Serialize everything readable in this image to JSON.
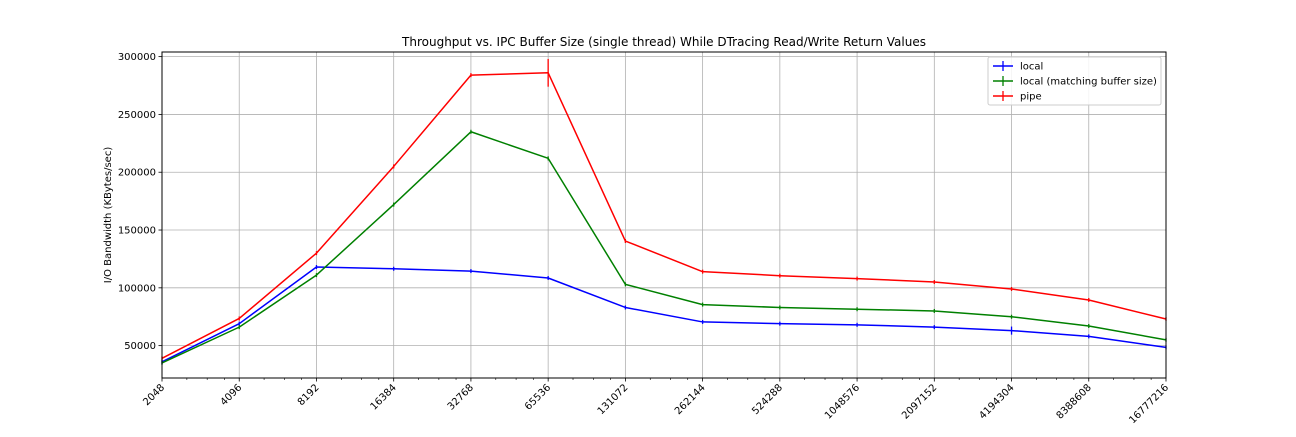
{
  "chart_data": {
    "type": "line",
    "title": "Throughput vs. IPC Buffer Size (single thread) While DTracing Read/Write Return Values",
    "xlabel": "",
    "ylabel": "I/O Bandwidth (KBytes/sec)",
    "x_scale": "log2",
    "xlim": [
      2048,
      16777216
    ],
    "ylim": [
      22000,
      304000
    ],
    "grid": true,
    "legend_position": "top-right",
    "x_ticks": [
      "2048",
      "4096",
      "8192",
      "16384",
      "32768",
      "65536",
      "131072",
      "262144",
      "524288",
      "1048576",
      "2097152",
      "4194304",
      "8388608",
      "16777216"
    ],
    "y_ticks": [
      "50000",
      "100000",
      "150000",
      "200000",
      "250000",
      "300000"
    ],
    "x": [
      2048,
      4096,
      8192,
      16384,
      32768,
      65536,
      131072,
      262144,
      524288,
      1048576,
      2097152,
      4194304,
      8388608,
      16777216
    ],
    "series": [
      {
        "name": "local",
        "color": "#0000ff",
        "values": [
          36000,
          69000,
          118000,
          116500,
          114500,
          108500,
          83000,
          70500,
          69000,
          68000,
          66000,
          63000,
          58000,
          48500
        ],
        "errors": [
          1000,
          1000,
          1500,
          500,
          500,
          500,
          500,
          500,
          500,
          1000,
          500,
          3500,
          500,
          500
        ]
      },
      {
        "name": "local (matching buffer size)",
        "color": "#008000",
        "values": [
          35000,
          66000,
          111000,
          172000,
          235000,
          212000,
          103000,
          85500,
          83000,
          81500,
          80000,
          75000,
          67000,
          55000
        ],
        "errors": [
          500,
          500,
          1000,
          500,
          1500,
          1000,
          1000,
          500,
          500,
          500,
          500,
          500,
          500,
          500
        ]
      },
      {
        "name": "pipe",
        "color": "#ff0000",
        "values": [
          39000,
          73500,
          130000,
          205000,
          284000,
          286000,
          140500,
          114000,
          110500,
          108000,
          105000,
          99000,
          89500,
          73000
        ],
        "errors": [
          500,
          500,
          1000,
          1000,
          1500,
          12000,
          1000,
          500,
          1000,
          500,
          500,
          500,
          1500,
          500
        ]
      }
    ]
  }
}
